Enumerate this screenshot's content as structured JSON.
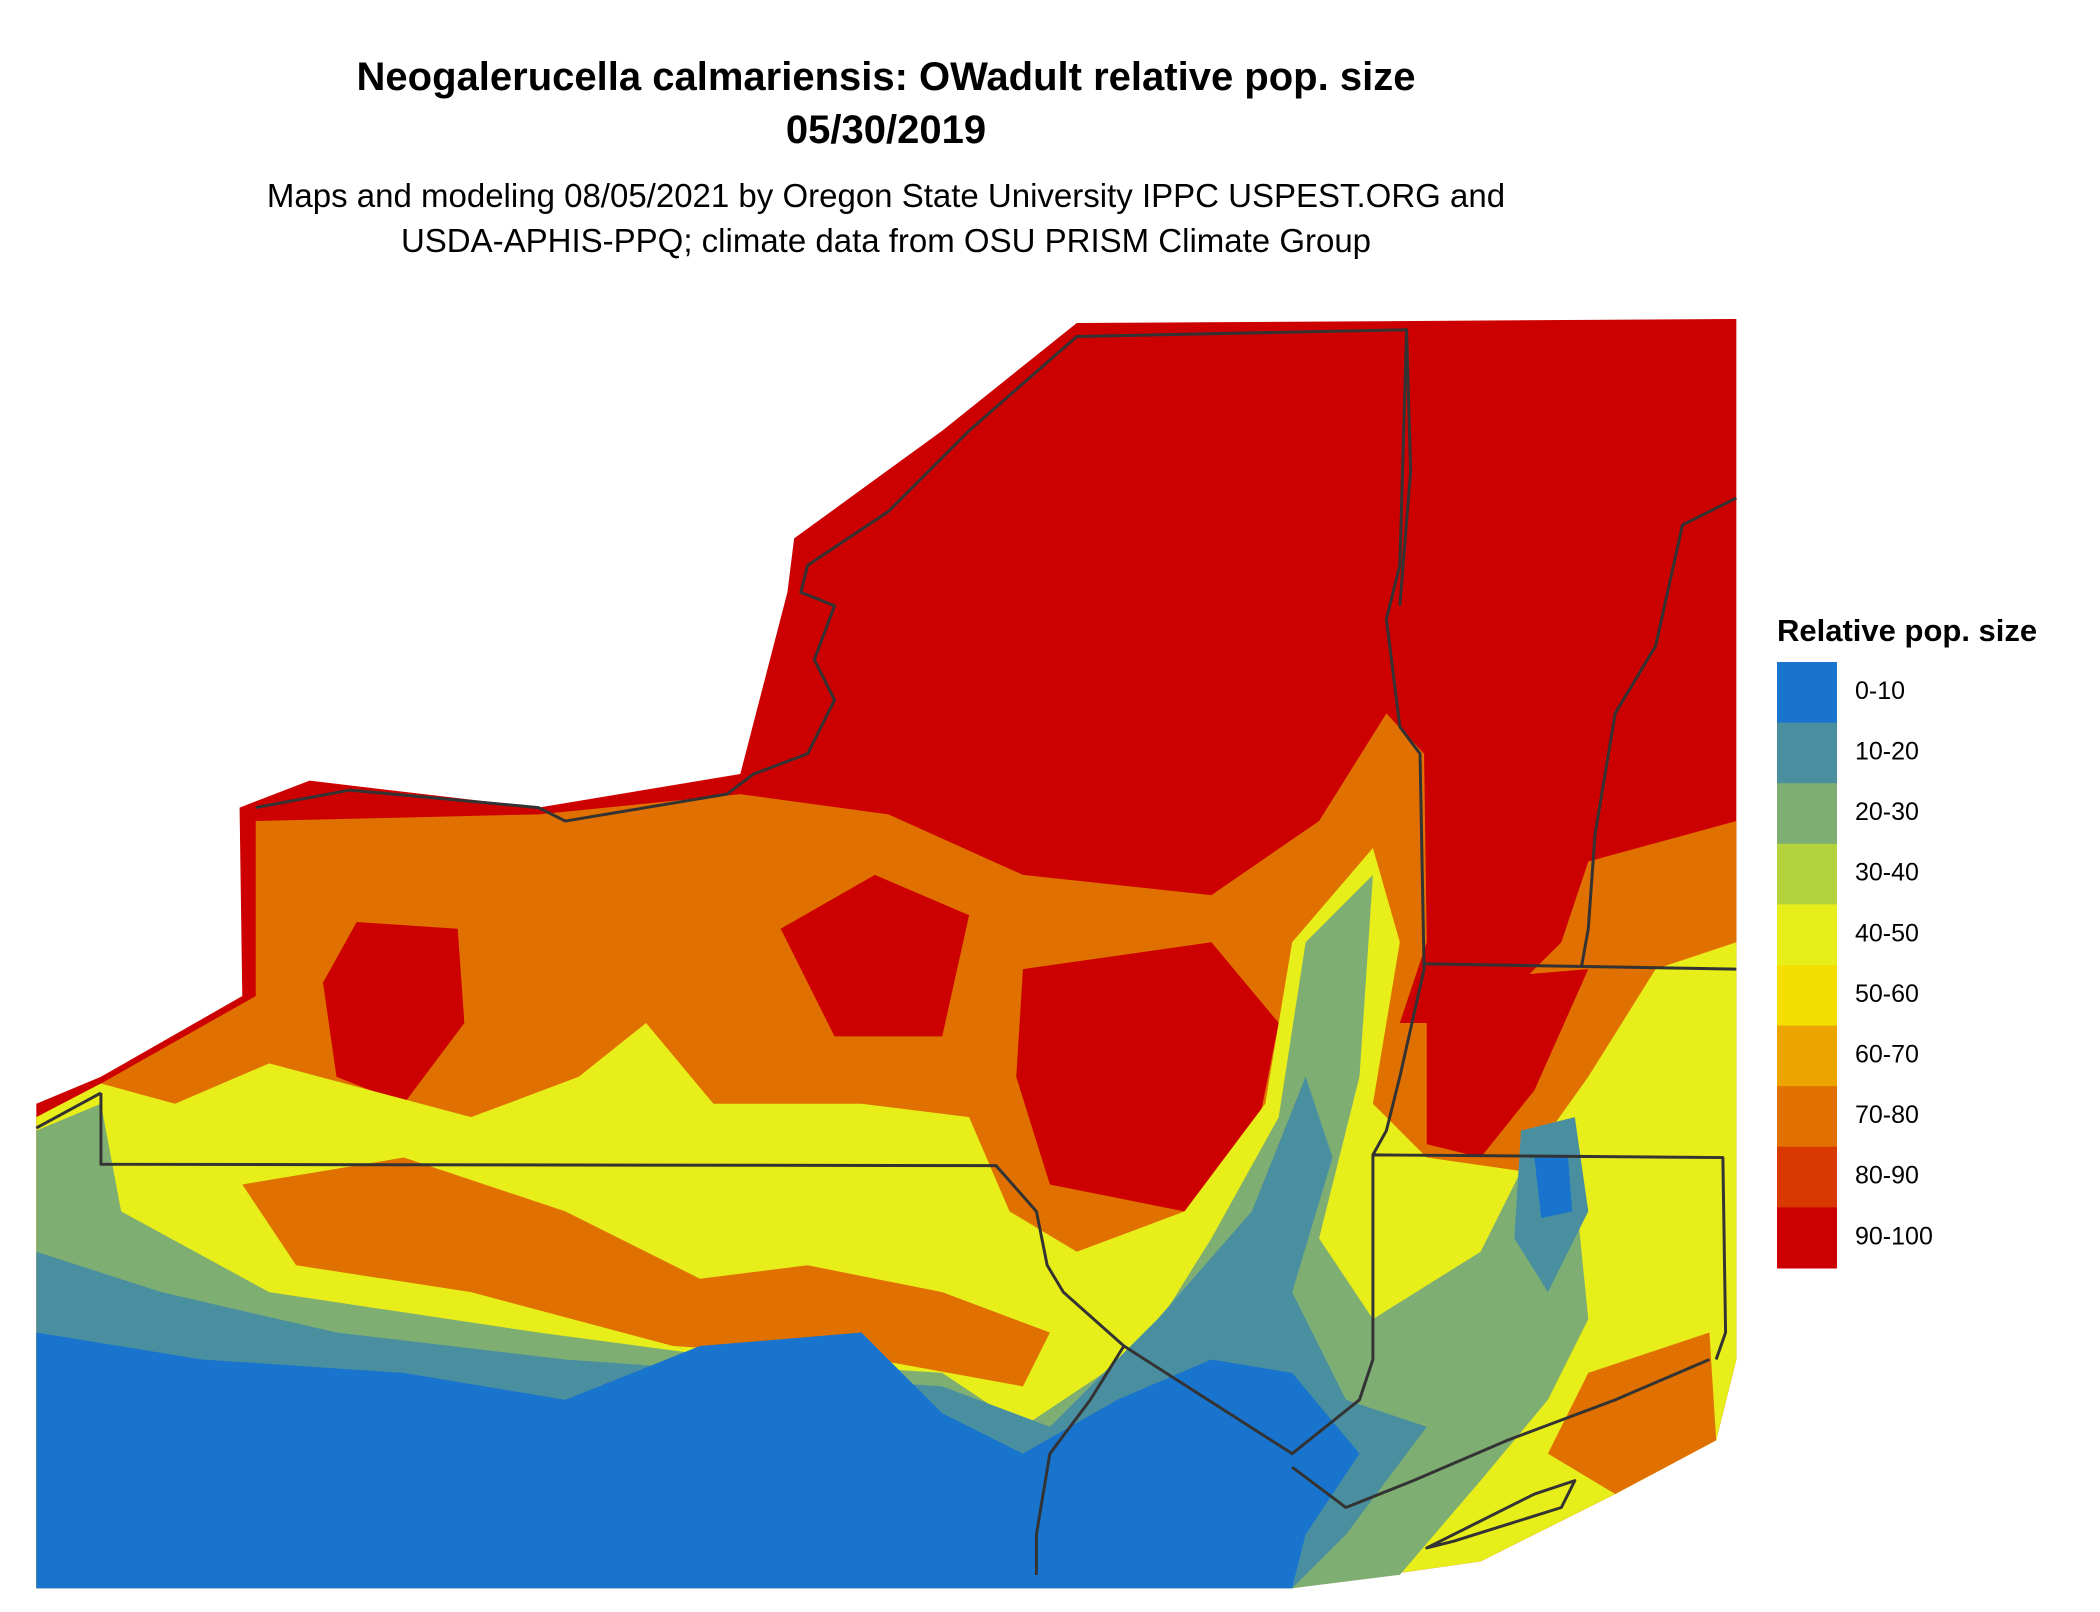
{
  "title": "Neogalerucella calmariensis: OWadult relative pop. size",
  "date": "05/30/2019",
  "subtitle": [
    "Maps and modeling 08/05/2021 by Oregon State University IPPC USPEST.ORG and",
    "USDA-APHIS-PPQ; climate data from OSU PRISM Climate Group"
  ],
  "legend": {
    "title": "Relative pop. size",
    "items": [
      {
        "label": "0-10",
        "color": "#1874cd"
      },
      {
        "label": "10-20",
        "color": "#4a8fa0"
      },
      {
        "label": "20-30",
        "color": "#7fae72"
      },
      {
        "label": "30-40",
        "color": "#b4d23c"
      },
      {
        "label": "40-50",
        "color": "#e8ee1a"
      },
      {
        "label": "50-60",
        "color": "#f5df00"
      },
      {
        "label": "60-70",
        "color": "#eba400"
      },
      {
        "label": "70-80",
        "color": "#e07000"
      },
      {
        "label": "80-90",
        "color": "#d93800"
      },
      {
        "label": "90-100",
        "color": "#cc0000"
      }
    ]
  }
}
